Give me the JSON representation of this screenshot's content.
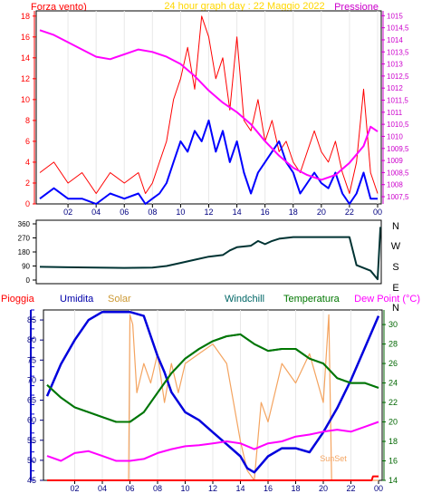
{
  "header": {
    "wind_label": "Forza vento)",
    "title": "24 hour graph day : 22 Maggio 2022",
    "pressure_label": "Pressione"
  },
  "direction_letters": [
    "N",
    "W",
    "S",
    "E",
    "N"
  ],
  "legend": {
    "pioggia": "Pioggia",
    "umidita": "Umidita",
    "solar": "Solar",
    "windchill": "Windchill",
    "temperatura": "Temperatura",
    "dewpoint": "Dew Point (°C)"
  },
  "sunset_label": "SunSet",
  "colors": {
    "wind": "#ff0000",
    "wind_avg": "#0000ff",
    "pressure": "#ff00ff",
    "direction": "#003333",
    "humidity": "#0000dd",
    "solar": "#f4a460",
    "windchill": "#006666",
    "temperature": "#007700",
    "dewpoint": "#ff00ff",
    "rain": "#ff0000",
    "title": "#ffd700",
    "axis_left": "#ff0000",
    "axis_right": "#cc00cc",
    "frame": "#000000"
  },
  "chart_data": [
    {
      "type": "line",
      "xlabel": "",
      "x_ticks": [
        "02",
        "04",
        "06",
        "08",
        "10",
        "12",
        "14",
        "16",
        "18",
        "20",
        "22",
        "00"
      ],
      "y_left_ticks": [
        "0",
        "2",
        "4",
        "6",
        "8",
        "10",
        "12",
        "14",
        "16",
        "18"
      ],
      "y_left_range": [
        0,
        18.5
      ],
      "y_right_ticks": [
        "1007,5",
        "1008",
        "1008,5",
        "1009",
        "1009,5",
        "1010",
        "1010,5",
        "1011",
        "1011,5",
        "1012",
        "1012,5",
        "1013",
        "1013,5",
        "1014",
        "1014,5",
        "1015"
      ],
      "y_right_range": [
        1007.2,
        1015.2
      ],
      "series": [
        {
          "name": "Forza vento)",
          "axis": "left",
          "x": [
            0,
            1,
            2,
            3,
            4,
            5,
            6,
            7,
            7.5,
            8,
            8.5,
            9,
            9.5,
            10,
            10.5,
            11,
            11.5,
            12,
            12.5,
            13,
            13.5,
            14,
            14.5,
            15,
            15.5,
            16,
            16.5,
            17,
            17.5,
            18,
            18.5,
            19,
            19.5,
            20,
            20.5,
            21,
            21.5,
            22,
            22.5,
            23,
            23.5,
            24
          ],
          "values": [
            3,
            4,
            2,
            3,
            1,
            3,
            2,
            3,
            1,
            2,
            4,
            6,
            10,
            12,
            15,
            11,
            18,
            16,
            12,
            14,
            9,
            16,
            8,
            7,
            10,
            6,
            8,
            5,
            6,
            4,
            3,
            5,
            7,
            5,
            4,
            6,
            3,
            1,
            4,
            11,
            3,
            1
          ]
        },
        {
          "name": "",
          "axis": "left",
          "x": [
            0,
            1,
            2,
            3,
            4,
            5,
            6,
            7,
            7.5,
            8,
            8.5,
            9,
            9.5,
            10,
            10.5,
            11,
            11.5,
            12,
            12.5,
            13,
            13.5,
            14,
            14.5,
            15,
            15.5,
            16,
            16.5,
            17,
            17.5,
            18,
            18.5,
            19,
            19.5,
            20,
            20.5,
            21,
            21.5,
            22,
            22.5,
            23,
            23.5,
            24
          ],
          "values": [
            0.5,
            1.5,
            0.5,
            0.5,
            0,
            1,
            0.5,
            1,
            0,
            0.5,
            1,
            2,
            4,
            6,
            5,
            7,
            6,
            8,
            5,
            7,
            4,
            6,
            3,
            1,
            3,
            4,
            5,
            6,
            4,
            3,
            1,
            2,
            3,
            2,
            1.5,
            3,
            1,
            0,
            1,
            3,
            0.5,
            0.5
          ]
        },
        {
          "name": "Pressione",
          "axis": "right",
          "x": [
            0,
            1,
            2,
            3,
            4,
            5,
            6,
            7,
            8,
            9,
            10,
            11,
            12,
            13,
            14,
            15,
            16,
            17,
            18,
            19,
            20,
            21,
            22,
            23,
            23.5,
            24
          ],
          "values": [
            1014.4,
            1014.2,
            1013.9,
            1013.6,
            1013.3,
            1013.2,
            1013.4,
            1013.6,
            1013.5,
            1013.3,
            1013.0,
            1012.5,
            1011.9,
            1011.4,
            1011.0,
            1010.5,
            1009.8,
            1009.2,
            1008.7,
            1008.4,
            1008.2,
            1008.4,
            1008.9,
            1009.6,
            1010.4,
            1010.2
          ]
        }
      ]
    },
    {
      "type": "line",
      "xlabel": "",
      "y_ticks": [
        "0",
        "90",
        "180",
        "270",
        "360"
      ],
      "y_range": [
        0,
        360
      ],
      "series": [
        {
          "name": "",
          "x": [
            0,
            2,
            4,
            6,
            8,
            9,
            10,
            11,
            12,
            13,
            13.5,
            14,
            15,
            15.5,
            16,
            16.5,
            17,
            18,
            20,
            22,
            22.5,
            23.5,
            24,
            24.2
          ],
          "values": [
            85,
            82,
            80,
            78,
            80,
            90,
            110,
            130,
            150,
            160,
            190,
            210,
            220,
            250,
            230,
            250,
            265,
            275,
            275,
            275,
            95,
            60,
            5,
            340
          ]
        }
      ]
    },
    {
      "type": "line",
      "xlabel": "",
      "x_ticks": [
        "02",
        "04",
        "06",
        "08",
        "10",
        "12",
        "14",
        "16",
        "18",
        "20",
        "22",
        "00"
      ],
      "y_left_ticks": [
        "45",
        "50",
        "55",
        "60",
        "65",
        "70",
        "75",
        "80",
        "85"
      ],
      "y_left_range": [
        45,
        87.5
      ],
      "y_right_ticks": [
        "14",
        "16",
        "18",
        "20",
        "22",
        "24",
        "26",
        "28",
        "30"
      ],
      "y_right_range": [
        14,
        31.5
      ],
      "series": [
        {
          "name": "Umidita",
          "axis": "left",
          "x": [
            0,
            1,
            2,
            3,
            4,
            5,
            6,
            7,
            8,
            8.5,
            9,
            10,
            11,
            12,
            13,
            14,
            14.5,
            15,
            16,
            17,
            18,
            19,
            20,
            21,
            22,
            23,
            24
          ],
          "values": [
            66,
            74,
            80,
            85,
            87,
            87,
            87,
            86,
            76,
            72,
            67,
            62,
            60,
            57,
            54,
            51,
            48,
            47,
            51,
            53,
            53,
            52,
            57,
            63,
            70,
            78,
            86
          ]
        },
        {
          "name": "Solar",
          "axis": "right",
          "x": [
            0,
            5.9,
            6,
            6.2,
            6.5,
            7,
            7.5,
            8,
            8.5,
            9,
            9.5,
            10,
            11,
            12,
            13,
            14,
            14.5,
            15,
            15.5,
            16,
            17,
            18,
            19,
            20,
            20.4,
            20.6,
            21,
            24
          ],
          "values": [
            14,
            14,
            31,
            30,
            23,
            26,
            24,
            27,
            22,
            26,
            23,
            26,
            27,
            28,
            26,
            18,
            15,
            14,
            22,
            20,
            26,
            24,
            27,
            22,
            31,
            14,
            14,
            14
          ]
        },
        {
          "name": "Windchill",
          "axis": "right",
          "x": [
            0,
            1,
            2,
            3,
            4,
            5,
            6,
            7,
            8,
            9,
            10,
            11,
            12,
            13,
            14,
            15,
            16,
            17,
            18,
            19,
            20,
            21,
            22,
            23,
            24
          ],
          "values": [
            23.8,
            22.5,
            21.5,
            21.0,
            20.5,
            20.0,
            20.0,
            21.0,
            23.0,
            25.0,
            26.5,
            27.5,
            28.3,
            28.8,
            29.0,
            28.0,
            27.3,
            27.5,
            27.5,
            26.5,
            26.0,
            24.5,
            24.0,
            24.0,
            23.5
          ]
        },
        {
          "name": "Temperatura",
          "axis": "right",
          "x": [
            0,
            1,
            2,
            3,
            4,
            5,
            6,
            7,
            8,
            9,
            10,
            11,
            12,
            13,
            14,
            15,
            16,
            17,
            18,
            19,
            20,
            21,
            22,
            23,
            24
          ],
          "values": [
            23.8,
            22.5,
            21.5,
            21.0,
            20.5,
            20.0,
            20.0,
            21.0,
            23.0,
            25.0,
            26.5,
            27.5,
            28.3,
            28.8,
            29.0,
            28.0,
            27.3,
            27.5,
            27.5,
            26.5,
            26.0,
            24.5,
            24.0,
            24.0,
            23.5
          ]
        },
        {
          "name": "Dew Point (°C)",
          "axis": "right",
          "x": [
            0,
            1,
            2,
            3,
            4,
            5,
            6,
            7,
            8,
            9,
            10,
            11,
            12,
            13,
            14,
            15,
            16,
            17,
            18,
            19,
            20,
            21,
            22,
            23,
            24
          ],
          "values": [
            16.5,
            16.0,
            16.8,
            17.0,
            16.5,
            16.0,
            16.0,
            16.2,
            16.8,
            17.2,
            17.5,
            17.6,
            17.8,
            18.0,
            17.8,
            17.2,
            17.8,
            18.0,
            18.5,
            18.7,
            19.0,
            19.2,
            19.0,
            19.5,
            20.0
          ]
        },
        {
          "name": "Pioggia",
          "axis": "left",
          "x": [
            0,
            23.5,
            23.6,
            24
          ],
          "values": [
            45,
            45,
            46,
            46
          ]
        }
      ]
    }
  ]
}
